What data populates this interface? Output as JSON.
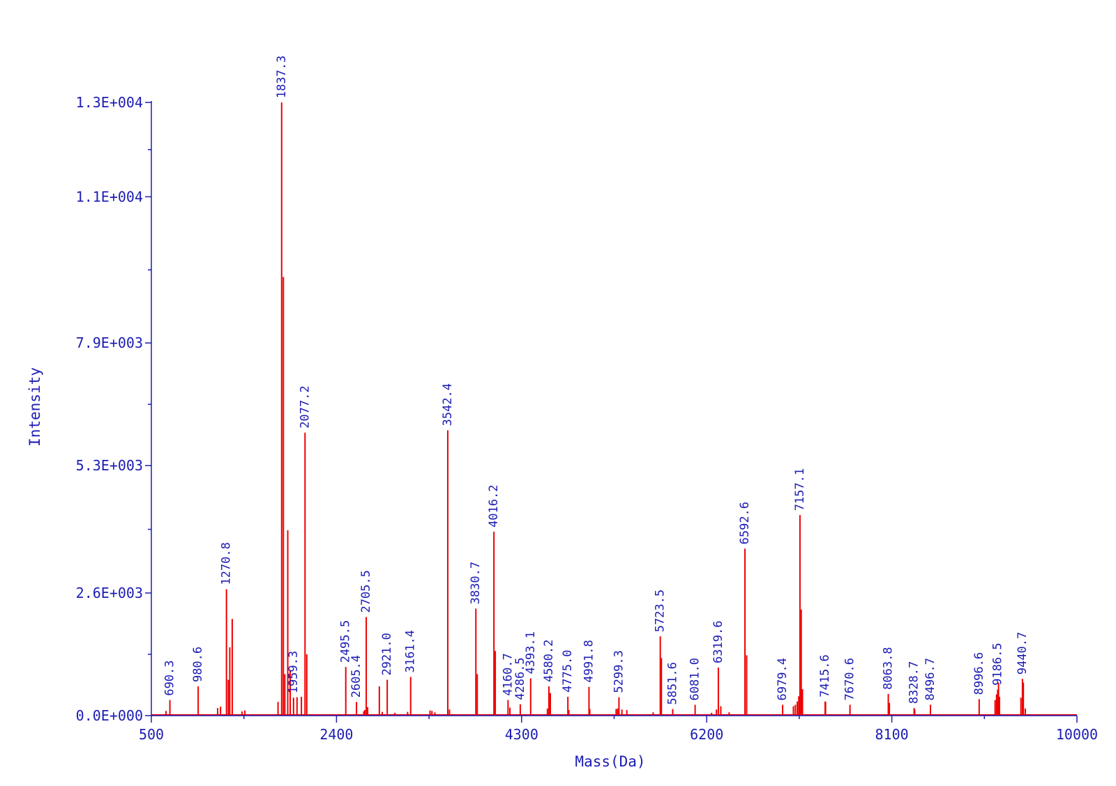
{
  "chart_data": {
    "type": "bar",
    "title": "",
    "xlabel": "Mass(Da)",
    "ylabel": "Intensity",
    "xlim": [
      500,
      10000
    ],
    "ylim": [
      0,
      13000
    ],
    "x_ticks": [
      500,
      2400,
      4300,
      6200,
      8100,
      10000
    ],
    "x_tick_labels": [
      "500",
      "2400",
      "4300",
      "6200",
      "8100",
      "10000"
    ],
    "y_ticks": [
      0,
      2600,
      5300,
      7900,
      11000,
      13000
    ],
    "y_tick_labels": [
      "0.0E+000",
      "2.6E+003",
      "5.3E+003",
      "7.9E+003",
      "1.1E+004",
      "1.3E+004"
    ],
    "grid": false,
    "colors": {
      "axis": "#1c1cb4",
      "peaks": "#ee0000"
    },
    "series": [
      {
        "peaks": [
          {
            "x": 690.3,
            "y": 330,
            "label": "690.3"
          },
          {
            "x": 980.6,
            "y": 620,
            "label": "980.6"
          },
          {
            "x": 1270.8,
            "y": 2680,
            "label": "1270.8"
          },
          {
            "x": 1837.3,
            "y": 13000,
            "label": "1837.3"
          },
          {
            "x": 1959.3,
            "y": 380,
            "label": "1959.3"
          },
          {
            "x": 2077.2,
            "y": 6000,
            "label": "2077.2"
          },
          {
            "x": 2495.5,
            "y": 1030,
            "label": "2495.5"
          },
          {
            "x": 2605.4,
            "y": 290,
            "label": "2605.4"
          },
          {
            "x": 2705.5,
            "y": 2090,
            "label": "2705.5"
          },
          {
            "x": 2921.0,
            "y": 760,
            "label": "2921.0"
          },
          {
            "x": 3161.4,
            "y": 820,
            "label": "3161.4"
          },
          {
            "x": 3542.4,
            "y": 6050,
            "label": "3542.4"
          },
          {
            "x": 3830.7,
            "y": 2270,
            "label": "3830.7"
          },
          {
            "x": 4016.2,
            "y": 3900,
            "label": "4016.2"
          },
          {
            "x": 4160.7,
            "y": 330,
            "label": "4160.7"
          },
          {
            "x": 4286.5,
            "y": 240,
            "label": "4286.5"
          },
          {
            "x": 4393.1,
            "y": 790,
            "label": "4393.1"
          },
          {
            "x": 4580.2,
            "y": 620,
            "label": "4580.2"
          },
          {
            "x": 4775.0,
            "y": 400,
            "label": "4775.0"
          },
          {
            "x": 4991.8,
            "y": 610,
            "label": "4991.8"
          },
          {
            "x": 5299.3,
            "y": 390,
            "label": "5299.3"
          },
          {
            "x": 5723.5,
            "y": 1680,
            "label": "5723.5"
          },
          {
            "x": 5851.6,
            "y": 140,
            "label": "5851.6"
          },
          {
            "x": 6081.0,
            "y": 230,
            "label": "6081.0"
          },
          {
            "x": 6319.6,
            "y": 1020,
            "label": "6319.6"
          },
          {
            "x": 6592.6,
            "y": 3540,
            "label": "6592.6"
          },
          {
            "x": 6979.4,
            "y": 230,
            "label": "6979.4"
          },
          {
            "x": 7157.1,
            "y": 4250,
            "label": "7157.1"
          },
          {
            "x": 7415.6,
            "y": 300,
            "label": "7415.6"
          },
          {
            "x": 7670.6,
            "y": 230,
            "label": "7670.6"
          },
          {
            "x": 8063.8,
            "y": 460,
            "label": "8063.8"
          },
          {
            "x": 8328.7,
            "y": 160,
            "label": "8328.7"
          },
          {
            "x": 8496.7,
            "y": 230,
            "label": "8496.7"
          },
          {
            "x": 8996.6,
            "y": 350,
            "label": "8996.6"
          },
          {
            "x": 9186.5,
            "y": 550,
            "label": "9186.5"
          },
          {
            "x": 9440.7,
            "y": 780,
            "label": "9440.7"
          }
        ],
        "minor_peaks": [
          {
            "x": 650,
            "y": 100
          },
          {
            "x": 1180,
            "y": 160
          },
          {
            "x": 1210,
            "y": 190
          },
          {
            "x": 1305,
            "y": 1450
          },
          {
            "x": 1330,
            "y": 2050
          },
          {
            "x": 1290,
            "y": 760
          },
          {
            "x": 1430,
            "y": 90
          },
          {
            "x": 1460,
            "y": 110
          },
          {
            "x": 1800,
            "y": 290
          },
          {
            "x": 1855,
            "y": 9300
          },
          {
            "x": 1870,
            "y": 880
          },
          {
            "x": 1900,
            "y": 3930
          },
          {
            "x": 1925,
            "y": 950
          },
          {
            "x": 1995,
            "y": 390
          },
          {
            "x": 2040,
            "y": 400
          },
          {
            "x": 2095,
            "y": 1300
          },
          {
            "x": 2680,
            "y": 90
          },
          {
            "x": 2690,
            "y": 120
          },
          {
            "x": 2720,
            "y": 180
          },
          {
            "x": 2840,
            "y": 620
          },
          {
            "x": 2870,
            "y": 80
          },
          {
            "x": 3000,
            "y": 60
          },
          {
            "x": 3130,
            "y": 80
          },
          {
            "x": 3360,
            "y": 110
          },
          {
            "x": 3380,
            "y": 100
          },
          {
            "x": 3410,
            "y": 70
          },
          {
            "x": 3560,
            "y": 130
          },
          {
            "x": 3845,
            "y": 880
          },
          {
            "x": 4030,
            "y": 1370
          },
          {
            "x": 4180,
            "y": 170
          },
          {
            "x": 4565,
            "y": 150
          },
          {
            "x": 4595,
            "y": 480
          },
          {
            "x": 4785,
            "y": 120
          },
          {
            "x": 5000,
            "y": 140
          },
          {
            "x": 5270,
            "y": 140
          },
          {
            "x": 5285,
            "y": 150
          },
          {
            "x": 5330,
            "y": 130
          },
          {
            "x": 5380,
            "y": 120
          },
          {
            "x": 5650,
            "y": 70
          },
          {
            "x": 5735,
            "y": 1220
          },
          {
            "x": 6300,
            "y": 130
          },
          {
            "x": 6345,
            "y": 200
          },
          {
            "x": 6250,
            "y": 60
          },
          {
            "x": 6610,
            "y": 1280
          },
          {
            "x": 6430,
            "y": 70
          },
          {
            "x": 7090,
            "y": 200
          },
          {
            "x": 7110,
            "y": 230
          },
          {
            "x": 7130,
            "y": 300
          },
          {
            "x": 7145,
            "y": 410
          },
          {
            "x": 7170,
            "y": 2250
          },
          {
            "x": 7183,
            "y": 560
          },
          {
            "x": 7420,
            "y": 290
          },
          {
            "x": 8075,
            "y": 270
          },
          {
            "x": 8335,
            "y": 130
          },
          {
            "x": 9160,
            "y": 330
          },
          {
            "x": 9175,
            "y": 450
          },
          {
            "x": 9195,
            "y": 700
          },
          {
            "x": 9205,
            "y": 400
          },
          {
            "x": 9425,
            "y": 380
          },
          {
            "x": 9450,
            "y": 700
          },
          {
            "x": 9470,
            "y": 150
          }
        ]
      }
    ]
  }
}
